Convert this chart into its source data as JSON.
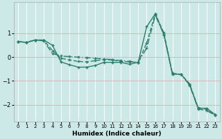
{
  "xlabel": "Humidex (Indice chaleur)",
  "ylabel": "",
  "bg_color": "#cce9e7",
  "line_color": "#2e7d6e",
  "grid_color_h": "#e8b0b0",
  "grid_color_v": "#ffffff",
  "xlim": [
    -0.5,
    23.5
  ],
  "ylim": [
    -2.7,
    2.3
  ],
  "xticks": [
    0,
    1,
    2,
    3,
    4,
    5,
    6,
    7,
    8,
    9,
    10,
    11,
    12,
    13,
    14,
    15,
    16,
    17,
    18,
    19,
    20,
    21,
    22,
    23
  ],
  "yticks": [
    -2,
    -1,
    0,
    1
  ],
  "line1_x": [
    0,
    1,
    2,
    3,
    4,
    5,
    6,
    7,
    8,
    9,
    10,
    11,
    12,
    13,
    14,
    15,
    16,
    17,
    18,
    19,
    20,
    21,
    22,
    23
  ],
  "line1_y": [
    0.65,
    0.62,
    0.72,
    0.72,
    0.5,
    -0.2,
    -0.32,
    -0.42,
    -0.42,
    -0.35,
    -0.22,
    -0.22,
    -0.22,
    -0.3,
    -0.22,
    1.28,
    1.82,
    0.95,
    -0.72,
    -0.72,
    -1.15,
    -2.15,
    -2.15,
    -2.42
  ],
  "line2_x": [
    0,
    1,
    2,
    3,
    4,
    5,
    6,
    7,
    8,
    9,
    10,
    11,
    12,
    13,
    14,
    15,
    16,
    17,
    18,
    19,
    20,
    21,
    22,
    23
  ],
  "line2_y": [
    0.65,
    0.62,
    0.72,
    0.7,
    0.28,
    -0.05,
    -0.12,
    -0.18,
    -0.2,
    -0.15,
    -0.1,
    -0.12,
    -0.18,
    -0.2,
    -0.22,
    0.6,
    1.82,
    1.02,
    -0.68,
    -0.72,
    -1.12,
    -2.12,
    -2.2,
    -2.42
  ],
  "line3_x": [
    0,
    1,
    2,
    3,
    4,
    5,
    6,
    7,
    8,
    9,
    10,
    11,
    12,
    13,
    14,
    15,
    16,
    17,
    18,
    19,
    20,
    21,
    22,
    23
  ],
  "line3_y": [
    0.65,
    0.62,
    0.72,
    0.68,
    0.15,
    0.05,
    0.02,
    0.0,
    -0.02,
    -0.05,
    -0.08,
    -0.1,
    -0.15,
    -0.18,
    -0.22,
    0.38,
    1.75,
    0.95,
    -0.7,
    -0.72,
    -1.18,
    -2.18,
    -2.25,
    -2.45
  ]
}
